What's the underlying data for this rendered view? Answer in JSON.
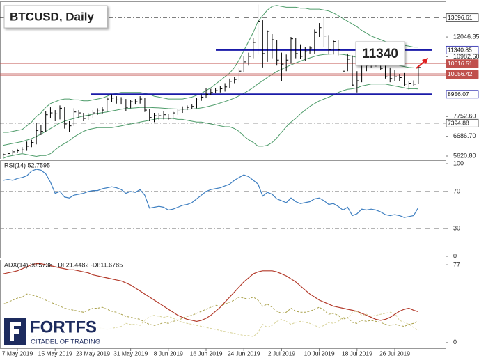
{
  "logo": {
    "name": "FORTFS",
    "tagline": "CITADEL OF TRADING"
  },
  "chart_data": [
    {
      "type": "ohlc",
      "title": "BTCUSD, Daily",
      "annotation": "11340",
      "color": "#000000",
      "categories": [
        null,
        null,
        null,
        "7 May 2019",
        null,
        null,
        null,
        null,
        null,
        null,
        null,
        "15 May 2019",
        null,
        null,
        null,
        null,
        null,
        null,
        null,
        "23 May 2019",
        null,
        null,
        null,
        null,
        null,
        null,
        null,
        "31 May 2019",
        null,
        null,
        null,
        null,
        null,
        null,
        null,
        "8 Jun 2019",
        null,
        null,
        null,
        null,
        null,
        null,
        null,
        "16 Jun 2019",
        null,
        null,
        null,
        null,
        null,
        null,
        null,
        "24 Jun 2019",
        null,
        null,
        null,
        null,
        null,
        null,
        null,
        "2 Jul 2019",
        null,
        null,
        null,
        null,
        null,
        null,
        null,
        "10 Jul 2019",
        null,
        null,
        null,
        null,
        null,
        null,
        null,
        "18 Jul 2019",
        null,
        null,
        null,
        null,
        null,
        null,
        null,
        "26 Jul 2019",
        null,
        null,
        null,
        null,
        null
      ],
      "high": [
        5800,
        5900,
        5950,
        6000,
        6100,
        6400,
        6500,
        7400,
        7300,
        8050,
        8250,
        8100,
        8350,
        8250,
        7500,
        8200,
        8100,
        7950,
        7950,
        8100,
        8200,
        8250,
        8800,
        8950,
        8850,
        8800,
        8700,
        8650,
        8700,
        8850,
        8750,
        8150,
        7950,
        7950,
        8050,
        7900,
        8050,
        8150,
        8300,
        8350,
        8400,
        8750,
        8950,
        9300,
        9250,
        9300,
        9400,
        9550,
        9800,
        9900,
        10400,
        11000,
        11200,
        12000,
        13800,
        12950,
        12400,
        12200,
        11900,
        11200,
        11100,
        12050,
        12000,
        11650,
        11500,
        11550,
        12450,
        12800,
        13150,
        12150,
        11900,
        11900,
        11450,
        11150,
        11050,
        10200,
        10750,
        10750,
        10700,
        10800,
        10750,
        10650,
        10400,
        10250,
        10050,
        10100,
        9650,
        9700,
        10450
      ],
      "low": [
        5550,
        5650,
        5700,
        5780,
        5800,
        5900,
        6100,
        6250,
        6750,
        6900,
        7650,
        7500,
        7600,
        7100,
        6900,
        7250,
        7650,
        7500,
        7550,
        7650,
        7850,
        7900,
        8000,
        8550,
        8450,
        8400,
        8050,
        8200,
        8400,
        8450,
        8000,
        7500,
        7450,
        7550,
        7600,
        7550,
        7600,
        7850,
        7950,
        8100,
        8150,
        8200,
        8600,
        8750,
        8900,
        9000,
        9050,
        9100,
        9300,
        9550,
        9700,
        10150,
        10500,
        10900,
        11100,
        10400,
        10700,
        10900,
        10500,
        9650,
        10200,
        10600,
        10900,
        10850,
        10750,
        11150,
        11150,
        12050,
        11500,
        11100,
        11100,
        11050,
        10000,
        10200,
        9400,
        9050,
        9600,
        10200,
        10400,
        10450,
        10250,
        9800,
        9600,
        9650,
        9650,
        9400,
        9200,
        9400,
        9500
      ],
      "close": [
        5700,
        5750,
        5850,
        5900,
        5950,
        6150,
        6350,
        7000,
        6950,
        7850,
        7950,
        7900,
        8200,
        7350,
        7250,
        8000,
        7950,
        7650,
        7800,
        7950,
        8050,
        8100,
        8700,
        8750,
        8650,
        8650,
        8250,
        8550,
        8550,
        8700,
        8100,
        7700,
        7800,
        7800,
        7850,
        7650,
        7950,
        8050,
        8150,
        8250,
        8300,
        8650,
        8800,
        8950,
        9050,
        9150,
        9250,
        9350,
        9650,
        9750,
        10200,
        10700,
        11000,
        11750,
        12900,
        11150,
        12350,
        11900,
        10800,
        10580,
        10800,
        11950,
        11150,
        11000,
        11250,
        11450,
        12300,
        12550,
        12100,
        11350,
        11800,
        11350,
        10200,
        10850,
        9450,
        9680,
        10630,
        10500,
        10750,
        10600,
        10350,
        9900,
        9800,
        9900,
        9850,
        9500,
        9550,
        9500,
        10400
      ],
      "bands": {
        "color": "#4e9c6a",
        "upper": [
          6900,
          6900,
          6950,
          7000,
          7050,
          7250,
          7450,
          7750,
          7950,
          8250,
          8450,
          8550,
          8650,
          8700,
          8700,
          8650,
          8650,
          8600,
          8600,
          8650,
          8700,
          8750,
          8850,
          8950,
          9000,
          9050,
          9050,
          9050,
          9050,
          9050,
          9000,
          8950,
          8850,
          8800,
          8750,
          8700,
          8700,
          8700,
          8700,
          8750,
          8800,
          8900,
          9000,
          9150,
          9300,
          9500,
          9700,
          9900,
          10100,
          10400,
          10800,
          11300,
          11800,
          12300,
          12900,
          13200,
          13500,
          13700,
          13750,
          13700,
          13650,
          13650,
          13650,
          13600,
          13600,
          13550,
          13550,
          13550,
          13500,
          13450,
          13350,
          13200,
          13050,
          12900,
          12750,
          12600,
          12400,
          12250,
          12100,
          12000,
          11900,
          11800,
          11750,
          11700,
          11650,
          11600,
          11550,
          11500,
          11500
        ],
        "middle": [
          6200,
          6250,
          6300,
          6350,
          6400,
          6480,
          6560,
          6680,
          6800,
          6950,
          7100,
          7250,
          7400,
          7500,
          7580,
          7650,
          7720,
          7780,
          7830,
          7880,
          7920,
          7960,
          8000,
          8050,
          8100,
          8150,
          8180,
          8200,
          8220,
          8240,
          8250,
          8240,
          8230,
          8220,
          8200,
          8180,
          8170,
          8160,
          8150,
          8150,
          8160,
          8180,
          8220,
          8270,
          8330,
          8400,
          8480,
          8560,
          8650,
          8750,
          8870,
          9000,
          9150,
          9320,
          9520,
          9680,
          9860,
          10030,
          10180,
          10300,
          10420,
          10540,
          10640,
          10740,
          10840,
          10920,
          11000,
          11060,
          11100,
          11120,
          11130,
          11130,
          11100,
          11060,
          11000,
          10950,
          10900,
          10850,
          10800,
          10750,
          10700,
          10650,
          10600,
          10550,
          10500,
          10450,
          10400,
          10380,
          10370
        ],
        "lower": [
          5500,
          5600,
          5650,
          5700,
          5750,
          5700,
          5650,
          5600,
          5650,
          5650,
          5750,
          5950,
          6150,
          6300,
          6450,
          6650,
          6800,
          6950,
          7050,
          7100,
          7150,
          7150,
          7150,
          7150,
          7200,
          7250,
          7300,
          7350,
          7400,
          7450,
          7500,
          7550,
          7600,
          7650,
          7650,
          7650,
          7650,
          7600,
          7600,
          7550,
          7500,
          7450,
          7450,
          7400,
          7350,
          7300,
          7250,
          7200,
          7200,
          7100,
          6950,
          6700,
          6500,
          6350,
          6150,
          6150,
          6200,
          6350,
          6600,
          6900,
          7200,
          7450,
          7650,
          7900,
          8100,
          8300,
          8450,
          8600,
          8700,
          8800,
          8900,
          9050,
          9150,
          9220,
          9250,
          9300,
          9400,
          9450,
          9500,
          9500,
          9500,
          9500,
          9450,
          9400,
          9350,
          9300,
          9250,
          9260,
          9240
        ]
      },
      "levels": [
        {
          "value": 13096.61,
          "color": "#333333",
          "style": "dashed"
        },
        {
          "value": 7394.88,
          "color": "#333333",
          "style": "dashed"
        },
        {
          "value": 11340.85,
          "color": "#1a1aa8",
          "style": "solid"
        },
        {
          "value": 8956.07,
          "color": "#1a1aa8",
          "style": "solid"
        },
        {
          "value": 10616.51,
          "color": "#c0504d",
          "style": "thin"
        },
        {
          "value": 9978.25,
          "color": "#c0504d",
          "style": "thin"
        },
        {
          "value": 10056.42,
          "color": "#c0504d",
          "style": "thin"
        }
      ],
      "ylim": [
        5470,
        13930
      ],
      "yticks": [
        {
          "value": 12046.85,
          "label": "12046.85"
        },
        {
          "value": 10982.6,
          "label": "10982.60"
        },
        {
          "value": 7752.6,
          "label": "7752.60"
        },
        {
          "value": 6686.7,
          "label": "6686.70"
        },
        {
          "value": 5620.8,
          "label": "5620.80"
        }
      ]
    },
    {
      "type": "line",
      "title": "RSI(14) 52.7595",
      "color": "#3e7fc1",
      "grid": true,
      "values": [
        82,
        83,
        82,
        84,
        85,
        87,
        92,
        94,
        93,
        89,
        80,
        68,
        70,
        64,
        63,
        66,
        67,
        68,
        70,
        71,
        71,
        73,
        74,
        75,
        74,
        72,
        68,
        70,
        69,
        72,
        66,
        52,
        53,
        54,
        53,
        50,
        51,
        53,
        55,
        56,
        58,
        62,
        66,
        70,
        72,
        73,
        74,
        76,
        78,
        82,
        85,
        88,
        86,
        82,
        78,
        65,
        69,
        67,
        62,
        60,
        58,
        63,
        59,
        57,
        58,
        59,
        62,
        63,
        60,
        56,
        57,
        54,
        50,
        53,
        44,
        46,
        51,
        50,
        51,
        50,
        48,
        45,
        44,
        45,
        44,
        42,
        43,
        44,
        52.76
      ],
      "ylim": [
        -1.5,
        103
      ],
      "yticks": [
        0,
        30,
        70,
        100
      ]
    },
    {
      "type": "line",
      "title": "ADX(14) 30.5738 +DI:21.4482 -DI:11.6785",
      "series": [
        {
          "color": "#b33a2a",
          "dash": false,
          "values": [
            68,
            69,
            70,
            71,
            73,
            75,
            77,
            78,
            78,
            77,
            76,
            75,
            74,
            73,
            72,
            72,
            71,
            70,
            69,
            67,
            66,
            65,
            64,
            63,
            62,
            61,
            59,
            57,
            54,
            51,
            48,
            45,
            42,
            39,
            36,
            33,
            30,
            27,
            25,
            23,
            22,
            21,
            22,
            24,
            27,
            31,
            35,
            40,
            45,
            50,
            55,
            60,
            64,
            68,
            70,
            71,
            71,
            71,
            70,
            68,
            66,
            63,
            60,
            56,
            52,
            48,
            45,
            42,
            40,
            38,
            36,
            35,
            34,
            33,
            32,
            31,
            29,
            27,
            25,
            23,
            22,
            23,
            25,
            28,
            31,
            33,
            34,
            32,
            30.57
          ]
        },
        {
          "color": "#a9a04a",
          "dash": true,
          "values": [
            38,
            40,
            42,
            44,
            45,
            48,
            47,
            46,
            44,
            42,
            40,
            38,
            36,
            34,
            33,
            32,
            31,
            30,
            32,
            34,
            34,
            35,
            33,
            31,
            30,
            28,
            26,
            25,
            24,
            23,
            20,
            18,
            17,
            18,
            20,
            19,
            21,
            22,
            24,
            26,
            27,
            29,
            31,
            33,
            35,
            37,
            36,
            38,
            40,
            42,
            45,
            44,
            43,
            45,
            42,
            36,
            38,
            35,
            31,
            29,
            30,
            34,
            31,
            30,
            30,
            31,
            33,
            35,
            32,
            28,
            29,
            27,
            23,
            25,
            20,
            19,
            22,
            21,
            22,
            21,
            20,
            18,
            17,
            18,
            17,
            16,
            18,
            19,
            21.45
          ]
        },
        {
          "color": "#d8d39a",
          "dash": true,
          "values": [
            10,
            9,
            9,
            8,
            8,
            7,
            6,
            6,
            7,
            10,
            12,
            14,
            13,
            17,
            18,
            17,
            16,
            18,
            17,
            16,
            15,
            14,
            13,
            14,
            15,
            16,
            19,
            18,
            18,
            17,
            22,
            26,
            27,
            26,
            25,
            26,
            24,
            22,
            20,
            19,
            18,
            17,
            16,
            15,
            14,
            13,
            12,
            11,
            10,
            9,
            8,
            7,
            7,
            6,
            10,
            18,
            15,
            17,
            21,
            23,
            21,
            18,
            20,
            21,
            20,
            19,
            17,
            15,
            17,
            20,
            19,
            21,
            25,
            24,
            30,
            31,
            27,
            28,
            26,
            27,
            28,
            29,
            30,
            29,
            22,
            20,
            18,
            15,
            11.68
          ]
        }
      ],
      "ylim": [
        -5.6,
        81.2
      ],
      "yticks": [
        0,
        77
      ]
    }
  ]
}
